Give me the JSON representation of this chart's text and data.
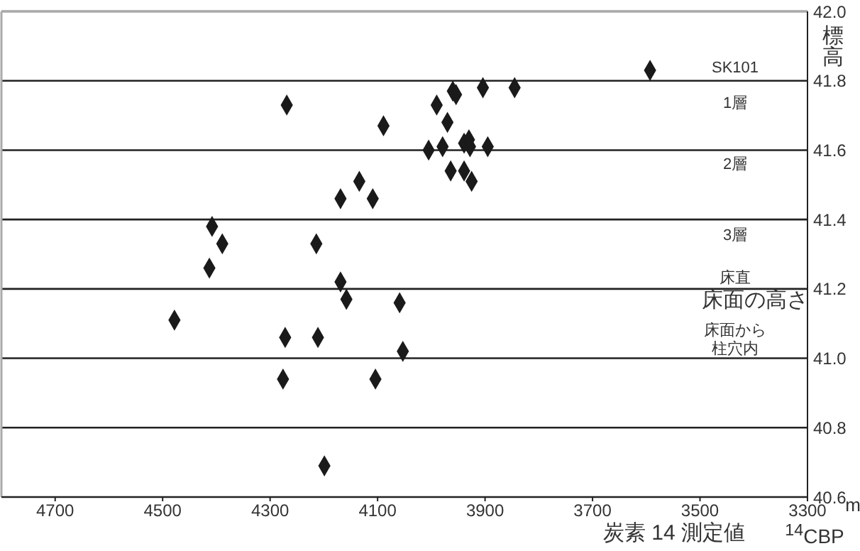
{
  "chart_data": {
    "type": "scatter",
    "xlabel": "炭素 14 測定値",
    "ylabel": "標高",
    "x": [
      3593,
      3845,
      3904,
      3960,
      3954,
      3990,
      3970,
      4005,
      3979,
      3939,
      3930,
      3928,
      3895,
      3964,
      3939,
      3925,
      4269,
      4089,
      4134,
      4169,
      4109,
      4408,
      4389,
      4214,
      4413,
      4169,
      4158,
      4059,
      4478,
      4272,
      4211,
      4053,
      4276,
      4104,
      4199
    ],
    "series": [
      {
        "color": "#1a1a1a",
        "values": [
          41.83,
          41.78,
          41.78,
          41.77,
          41.76,
          41.73,
          41.68,
          41.6,
          41.61,
          41.62,
          41.63,
          41.61,
          41.61,
          41.54,
          41.54,
          41.51,
          41.73,
          41.67,
          41.51,
          41.46,
          41.46,
          41.38,
          41.33,
          41.33,
          41.26,
          41.22,
          41.17,
          41.16,
          41.11,
          41.06,
          41.06,
          41.02,
          40.94,
          40.94,
          40.69
        ]
      }
    ],
    "xlim": [
      4800,
      3300
    ],
    "xticks": [
      4700,
      4500,
      4300,
      4100,
      3900,
      3700,
      3500,
      3300
    ],
    "ylim": [
      40.6,
      42.0
    ],
    "yticks": [
      {
        "value": 40.6,
        "label": "40.6"
      },
      {
        "value": 40.8,
        "label": "40.8"
      },
      {
        "value": 41,
        "label": "41.0"
      },
      {
        "value": 41.2,
        "label": "41.2"
      },
      {
        "value": 41.4,
        "label": "41.4"
      },
      {
        "value": 41.6,
        "label": "41.6"
      },
      {
        "value": 41.8,
        "label": "41.8"
      },
      {
        "value": 42,
        "label": "42.0"
      }
    ],
    "grid": "y",
    "marker": "diamond",
    "annotations": [
      "SK101",
      "1層",
      "2層",
      "3層",
      "床直",
      "床面の高さ",
      "床面から",
      "柱穴内",
      "m",
      "$^{14}$CBP"
    ]
  }
}
